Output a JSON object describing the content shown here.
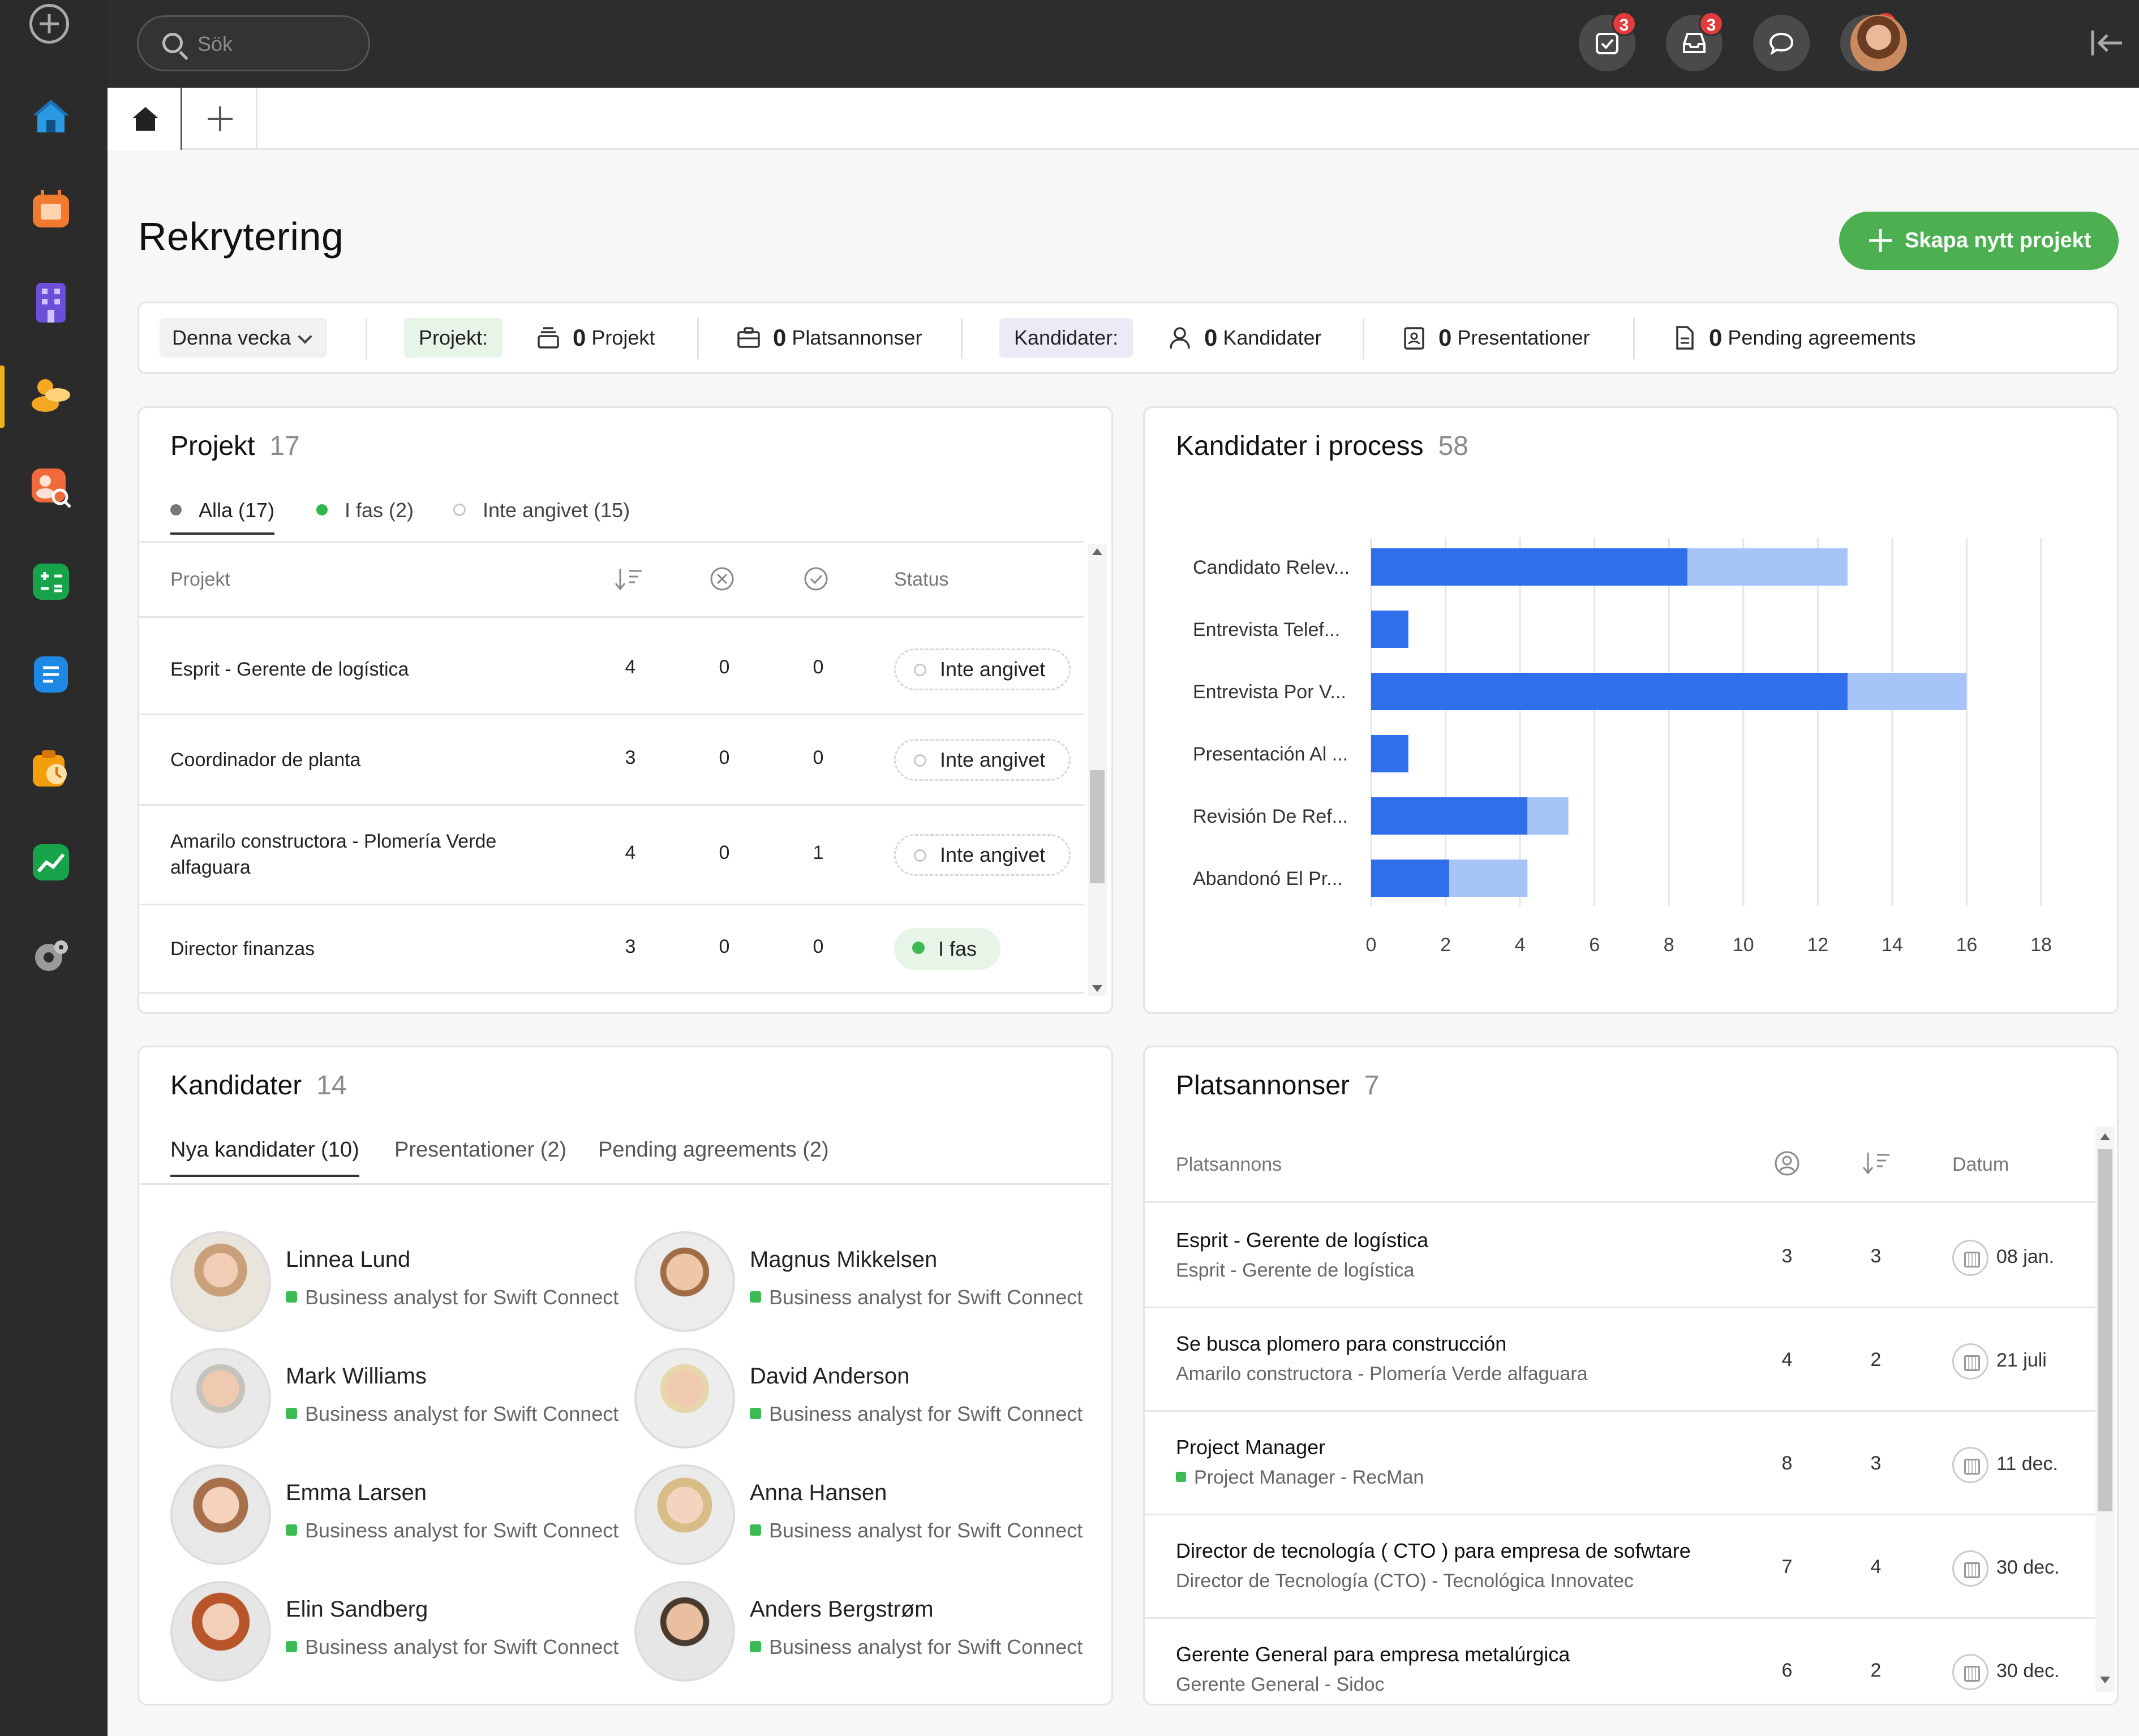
{
  "search": {
    "placeholder": "Sök"
  },
  "topbar": {
    "badges": {
      "tasks": "3",
      "inbox": "3",
      "notifications": "1"
    },
    "icons": [
      "tasks-icon",
      "inbox-icon",
      "chat-icon",
      "bell-icon",
      "avatar",
      "collapse-sidebar-icon"
    ]
  },
  "rail": {
    "icons": [
      "add-icon",
      "home-icon",
      "calendar-icon",
      "building-icon",
      "recruitment-icon",
      "candidate-search-icon",
      "calculator-icon",
      "document-list-icon",
      "timesheet-icon",
      "analytics-icon",
      "settings-icon"
    ]
  },
  "header": {
    "title": "Rekrytering",
    "create_label": "Skapa nytt projekt"
  },
  "filterbar": {
    "period": "Denna vecka",
    "projekt_label": "Projekt:",
    "projekt_count": "0",
    "projekt_text": "Projekt",
    "plats_count": "0",
    "plats_text": "Platsannonser",
    "kandidater_label": "Kandidater:",
    "kand_count": "0",
    "kand_text": "Kandidater",
    "pres_count": "0",
    "pres_text": "Presentationer",
    "pend_count": "0",
    "pend_text": "Pending agreements"
  },
  "projekt": {
    "title": "Projekt",
    "count": "17",
    "filters": [
      {
        "label": "Alla (17)"
      },
      {
        "label": "I fas (2)"
      },
      {
        "label": "Inte angivet (15)"
      }
    ],
    "columns": {
      "name": "Projekt",
      "status": "Status"
    },
    "rows": [
      {
        "name": "Esprit - Gerente de logística",
        "c1": "4",
        "c2": "0",
        "c3": "0",
        "status": "Inte angivet"
      },
      {
        "name": "Coordinador de planta",
        "c1": "3",
        "c2": "0",
        "c3": "0",
        "status": "Inte angivet"
      },
      {
        "name": "Amarilo constructora - Plomería Verde alfaguara",
        "c1": "4",
        "c2": "0",
        "c3": "1",
        "status": "Inte angivet"
      },
      {
        "name": "Director finanzas",
        "c1": "3",
        "c2": "0",
        "c3": "0",
        "status": "I fas"
      }
    ]
  },
  "process": {
    "title": "Kandidater i process",
    "count": "58"
  },
  "chart_data": {
    "type": "bar",
    "orientation": "horizontal",
    "stacked": true,
    "categories": [
      "Candidato Relev...",
      "Entrevista Telef...",
      "Entrevista Por V...",
      "Presentación Al ...",
      "Revisión De Ref...",
      "Abandonó El Pr..."
    ],
    "series": [
      {
        "values": [
          8.5,
          1,
          12.8,
          1,
          4.2,
          2.1
        ],
        "color": "#2f6fec"
      },
      {
        "values": [
          4.3,
          0,
          3.2,
          0,
          1.1,
          2.1
        ],
        "color": "#a6c4f7"
      }
    ],
    "xlim": [
      0,
      18
    ],
    "xticks": [
      "0",
      "2",
      "4",
      "6",
      "8",
      "10",
      "12",
      "14",
      "16",
      "18"
    ],
    "grid": true
  },
  "kandidater": {
    "title": "Kandidater",
    "count": "14",
    "tabs": [
      "Nya kandidater (10)",
      "Presentationer (2)",
      "Pending agreements (2)"
    ],
    "list": [
      {
        "name": "Linnea Lund",
        "sub": "Business analyst for Swift Connect"
      },
      {
        "name": "Magnus Mikkelsen",
        "sub": "Business analyst for Swift Connect"
      },
      {
        "name": "Mark Williams",
        "sub": "Business analyst for Swift Connect"
      },
      {
        "name": "David Anderson",
        "sub": "Business analyst for Swift Connect"
      },
      {
        "name": "Emma Larsen",
        "sub": "Business analyst for Swift Connect"
      },
      {
        "name": "Anna Hansen",
        "sub": "Business analyst for Swift Connect"
      },
      {
        "name": "Elin Sandberg",
        "sub": "Business analyst for Swift Connect"
      },
      {
        "name": "Anders Bergstrøm",
        "sub": "Business analyst for Swift Connect"
      }
    ]
  },
  "platsannonser": {
    "title": "Platsannonser",
    "count": "7",
    "columns": {
      "name": "Platsannons",
      "date": "Datum"
    },
    "rows": [
      {
        "title": "Esprit - Gerente de logística",
        "sub": "Esprit - Gerente de logística",
        "c1": "3",
        "c2": "3",
        "date": "08 jan."
      },
      {
        "title": "Se busca plomero para construcción",
        "sub": "Amarilo constructora - Plomería Verde alfaguara",
        "c1": "4",
        "c2": "2",
        "date": "21 juli"
      },
      {
        "title": "Project Manager",
        "sub": "Project Manager - RecMan",
        "c1": "8",
        "c2": "3",
        "date": "11 dec."
      },
      {
        "title": "Director de tecnología ( CTO ) para empresa de sofwtare",
        "sub": "Director de Tecnología (CTO) - Tecnológica Innovatec",
        "c1": "7",
        "c2": "4",
        "date": "30 dec."
      },
      {
        "title": "Gerente General para empresa metalúrgica",
        "sub": "Gerente General - Sidoc",
        "c1": "6",
        "c2": "2",
        "date": "30 dec."
      }
    ]
  }
}
